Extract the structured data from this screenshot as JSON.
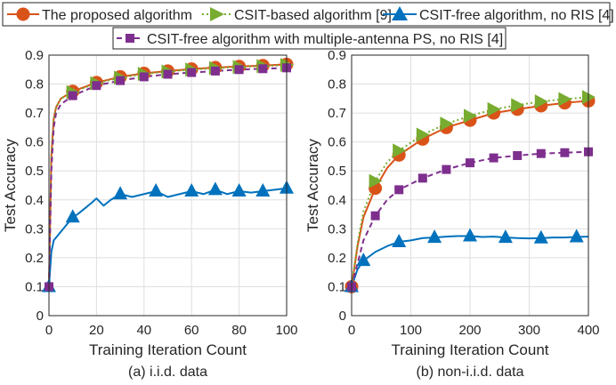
{
  "legend": {
    "entries": [
      {
        "label": "The proposed algorithm",
        "color": "#d95319",
        "marker": "circle",
        "dash": "solid"
      },
      {
        "label": "CSIT-based algorithm [9]",
        "color": "#77ac30",
        "marker": "triangle-right",
        "dash": "dotted"
      },
      {
        "label": "CSIT-free algorithm, no RIS [4]",
        "color": "#0072bd",
        "marker": "triangle-up",
        "dash": "solid"
      },
      {
        "label": "CSIT-free algorithm with multiple-antenna PS, no RIS [4]",
        "color": "#7e2f8e",
        "marker": "square",
        "dash": "dashed"
      }
    ]
  },
  "chart_data": [
    {
      "type": "line",
      "caption": "(a) i.i.d. data",
      "xlabel": "Training Iteration Count",
      "ylabel": "Test Accuracy",
      "xlim": [
        0,
        100
      ],
      "ylim": [
        0,
        0.9
      ],
      "xticks": [
        0,
        20,
        40,
        60,
        80,
        100
      ],
      "yticks": [
        0,
        0.1,
        0.2,
        0.3,
        0.4,
        0.5,
        0.6,
        0.7,
        0.8,
        0.9
      ],
      "grid": true,
      "series": [
        {
          "name": "The proposed algorithm",
          "x": [
            0,
            1,
            2,
            3,
            5,
            10,
            20,
            30,
            40,
            50,
            60,
            70,
            80,
            90,
            100
          ],
          "values": [
            0.1,
            0.55,
            0.68,
            0.72,
            0.75,
            0.775,
            0.805,
            0.825,
            0.837,
            0.845,
            0.852,
            0.857,
            0.861,
            0.864,
            0.868
          ]
        },
        {
          "name": "CSIT-based algorithm [9]",
          "x": [
            0,
            1,
            2,
            3,
            5,
            10,
            20,
            30,
            40,
            50,
            60,
            70,
            80,
            90,
            100
          ],
          "values": [
            0.1,
            0.55,
            0.68,
            0.72,
            0.75,
            0.772,
            0.803,
            0.822,
            0.835,
            0.843,
            0.85,
            0.855,
            0.859,
            0.862,
            0.866
          ]
        },
        {
          "name": "CSIT-free algorithm, no RIS [4]",
          "x": [
            0,
            1,
            2,
            4,
            6,
            8,
            10,
            12,
            15,
            18,
            20,
            23,
            26,
            30,
            35,
            40,
            45,
            50,
            55,
            60,
            65,
            70,
            75,
            80,
            85,
            90,
            95,
            100
          ],
          "values": [
            0.1,
            0.22,
            0.26,
            0.28,
            0.3,
            0.32,
            0.34,
            0.35,
            0.37,
            0.39,
            0.405,
            0.38,
            0.4,
            0.42,
            0.41,
            0.42,
            0.43,
            0.41,
            0.42,
            0.43,
            0.42,
            0.435,
            0.42,
            0.43,
            0.425,
            0.43,
            0.435,
            0.44
          ]
        },
        {
          "name": "CSIT-free algorithm with multiple-antenna PS, no RIS [4]",
          "x": [
            0,
            1,
            2,
            3,
            5,
            10,
            20,
            30,
            40,
            50,
            60,
            70,
            80,
            90,
            100
          ],
          "values": [
            0.1,
            0.5,
            0.65,
            0.7,
            0.73,
            0.76,
            0.795,
            0.812,
            0.825,
            0.834,
            0.84,
            0.845,
            0.85,
            0.853,
            0.856
          ]
        }
      ]
    },
    {
      "type": "line",
      "caption": "(b) non-i.i.d. data",
      "xlabel": "Training Iteration Count",
      "ylabel": "Test Accuracy",
      "xlim": [
        0,
        400
      ],
      "ylim": [
        0,
        0.9
      ],
      "xticks": [
        0,
        100,
        200,
        300,
        400
      ],
      "yticks": [
        0,
        0.1,
        0.2,
        0.3,
        0.4,
        0.5,
        0.6,
        0.7,
        0.8,
        0.9
      ],
      "grid": true,
      "series": [
        {
          "name": "The proposed algorithm",
          "x": [
            0,
            10,
            20,
            40,
            60,
            80,
            120,
            160,
            200,
            240,
            280,
            320,
            360,
            400
          ],
          "values": [
            0.1,
            0.24,
            0.34,
            0.44,
            0.51,
            0.555,
            0.61,
            0.65,
            0.675,
            0.7,
            0.713,
            0.725,
            0.735,
            0.742
          ]
        },
        {
          "name": "CSIT-based algorithm [9]",
          "x": [
            0,
            10,
            20,
            40,
            60,
            80,
            120,
            160,
            200,
            240,
            280,
            320,
            360,
            400
          ],
          "values": [
            0.1,
            0.25,
            0.36,
            0.465,
            0.53,
            0.57,
            0.625,
            0.663,
            0.69,
            0.713,
            0.727,
            0.74,
            0.748,
            0.755
          ]
        },
        {
          "name": "CSIT-free algorithm, no RIS [4]",
          "x": [
            0,
            10,
            20,
            40,
            60,
            80,
            100,
            120,
            140,
            160,
            180,
            200,
            220,
            240,
            260,
            280,
            300,
            320,
            340,
            360,
            380,
            400
          ],
          "values": [
            0.1,
            0.16,
            0.19,
            0.22,
            0.24,
            0.255,
            0.26,
            0.268,
            0.27,
            0.273,
            0.275,
            0.275,
            0.272,
            0.273,
            0.27,
            0.268,
            0.267,
            0.268,
            0.27,
            0.27,
            0.272,
            0.273
          ]
        },
        {
          "name": "CSIT-free algorithm with multiple-antenna PS, no RIS [4]",
          "x": [
            0,
            10,
            20,
            40,
            60,
            80,
            120,
            160,
            200,
            240,
            280,
            320,
            360,
            400
          ],
          "values": [
            0.1,
            0.18,
            0.26,
            0.345,
            0.4,
            0.435,
            0.475,
            0.505,
            0.528,
            0.545,
            0.553,
            0.56,
            0.563,
            0.566
          ]
        }
      ]
    }
  ]
}
